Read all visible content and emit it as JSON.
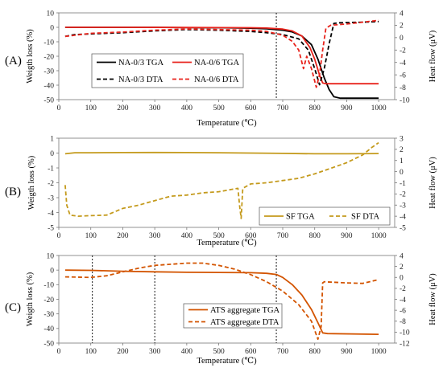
{
  "chart_data": [
    {
      "type": "line",
      "panel_label": "(A)",
      "xlabel": "Temperature (℃)",
      "ylabel": "Weigth loss (%)",
      "y2label": "Heat flow (μV)",
      "xlim": [
        0,
        1050
      ],
      "ylim": [
        -50,
        10
      ],
      "y2lim": [
        -10,
        4
      ],
      "xticks": [
        0,
        100,
        200,
        300,
        400,
        500,
        600,
        700,
        800,
        900,
        1000
      ],
      "yticks": [
        10,
        0,
        -10,
        -20,
        -30,
        -40,
        -50
      ],
      "y2ticks": [
        4,
        2,
        0,
        -2,
        -4,
        -6,
        -8,
        -10
      ],
      "vlines": [
        680
      ],
      "legend_position": "lower-left",
      "series": [
        {
          "name": "NA-0/3 TGA",
          "axis": "left",
          "color": "#000000",
          "dash": "solid",
          "points": [
            [
              20,
              0
            ],
            [
              100,
              0
            ],
            [
              200,
              0
            ],
            [
              300,
              0
            ],
            [
              400,
              -0.2
            ],
            [
              500,
              -0.3
            ],
            [
              600,
              -0.6
            ],
            [
              650,
              -1
            ],
            [
              700,
              -2
            ],
            [
              730,
              -3.2
            ],
            [
              760,
              -6
            ],
            [
              790,
              -12
            ],
            [
              810,
              -22
            ],
            [
              830,
              -35
            ],
            [
              845,
              -43
            ],
            [
              860,
              -48
            ],
            [
              880,
              -49
            ],
            [
              1000,
              -49
            ]
          ]
        },
        {
          "name": "NA-0/6 TGA",
          "axis": "left",
          "color": "#e8231c",
          "dash": "solid",
          "points": [
            [
              20,
              0
            ],
            [
              200,
              0
            ],
            [
              400,
              -0.1
            ],
            [
              600,
              -0.3
            ],
            [
              650,
              -0.5
            ],
            [
              700,
              -1.2
            ],
            [
              730,
              -2.5
            ],
            [
              760,
              -6
            ],
            [
              785,
              -14
            ],
            [
              800,
              -22
            ],
            [
              815,
              -33
            ],
            [
              825,
              -38.5
            ],
            [
              835,
              -39
            ],
            [
              1000,
              -39
            ]
          ]
        },
        {
          "name": "NA-0/3 DTA",
          "axis": "right",
          "color": "#000000",
          "dash": "dashed",
          "points": [
            [
              20,
              0.2
            ],
            [
              50,
              0.5
            ],
            [
              100,
              0.6
            ],
            [
              200,
              0.8
            ],
            [
              300,
              1.1
            ],
            [
              400,
              1.3
            ],
            [
              500,
              1.2
            ],
            [
              600,
              1.0
            ],
            [
              650,
              0.8
            ],
            [
              700,
              0.5
            ],
            [
              750,
              -0.2
            ],
            [
              780,
              -2
            ],
            [
              800,
              -5
            ],
            [
              815,
              -7.6
            ],
            [
              830,
              -5
            ],
            [
              845,
              -1
            ],
            [
              860,
              2.3
            ],
            [
              880,
              2.4
            ],
            [
              950,
              2.5
            ],
            [
              1000,
              2.6
            ]
          ]
        },
        {
          "name": "NA-0/6 DTA",
          "axis": "right",
          "color": "#e8231c",
          "dash": "dashed",
          "points": [
            [
              20,
              0.2
            ],
            [
              100,
              0.7
            ],
            [
              200,
              0.9
            ],
            [
              300,
              1.2
            ],
            [
              400,
              1.4
            ],
            [
              500,
              1.3
            ],
            [
              600,
              1.2
            ],
            [
              650,
              1.0
            ],
            [
              700,
              0.4
            ],
            [
              730,
              -0.6
            ],
            [
              750,
              -2
            ],
            [
              765,
              -5
            ],
            [
              775,
              -3
            ],
            [
              790,
              -5
            ],
            [
              805,
              -8
            ],
            [
              815,
              -6
            ],
            [
              825,
              -2
            ],
            [
              835,
              1.5
            ],
            [
              850,
              2
            ],
            [
              900,
              2.2
            ],
            [
              1000,
              2.8
            ]
          ]
        }
      ]
    },
    {
      "type": "line",
      "panel_label": "(B)",
      "xlabel": "Temperature (℃)",
      "ylabel": "Weigth loss (%)",
      "y2label": "Heat flow (μV)",
      "xlim": [
        0,
        1050
      ],
      "ylim": [
        -5,
        1
      ],
      "y2lim": [
        -5,
        3
      ],
      "xticks": [
        0,
        100,
        200,
        300,
        400,
        500,
        600,
        700,
        800,
        900,
        1000
      ],
      "yticks": [
        1,
        0,
        -1,
        -2,
        -3,
        -4,
        -5
      ],
      "y2ticks": [
        3,
        2,
        1,
        0,
        -1,
        -2,
        -3,
        -4,
        -5
      ],
      "vlines": [],
      "legend_position": "lower-right",
      "series": [
        {
          "name": "SF TGA",
          "axis": "left",
          "color": "#c49a1c",
          "dash": "solid",
          "points": [
            [
              20,
              -0.05
            ],
            [
              50,
              0.02
            ],
            [
              100,
              0.02
            ],
            [
              200,
              0.03
            ],
            [
              300,
              0.04
            ],
            [
              400,
              0.03
            ],
            [
              500,
              0.02
            ],
            [
              600,
              0
            ],
            [
              700,
              -0.02
            ],
            [
              800,
              -0.05
            ],
            [
              900,
              -0.05
            ],
            [
              1000,
              -0.03
            ]
          ]
        },
        {
          "name": "SF DTA",
          "axis": "right",
          "color": "#c49a1c",
          "dash": "dashed",
          "points": [
            [
              20,
              -1.2
            ],
            [
              25,
              -3
            ],
            [
              35,
              -3.9
            ],
            [
              60,
              -4.0
            ],
            [
              100,
              -3.95
            ],
            [
              150,
              -3.9
            ],
            [
              200,
              -3.3
            ],
            [
              250,
              -3.0
            ],
            [
              300,
              -2.6
            ],
            [
              350,
              -2.2
            ],
            [
              400,
              -2.1
            ],
            [
              450,
              -1.9
            ],
            [
              500,
              -1.8
            ],
            [
              540,
              -1.6
            ],
            [
              560,
              -1.5
            ],
            [
              565,
              -3
            ],
            [
              570,
              -4.2
            ],
            [
              575,
              -1.5
            ],
            [
              600,
              -1.1
            ],
            [
              650,
              -1.0
            ],
            [
              700,
              -0.8
            ],
            [
              750,
              -0.6
            ],
            [
              800,
              -0.2
            ],
            [
              850,
              0.3
            ],
            [
              900,
              0.8
            ],
            [
              950,
              1.5
            ],
            [
              980,
              2.2
            ],
            [
              1000,
              2.6
            ]
          ]
        }
      ]
    },
    {
      "type": "line",
      "panel_label": "(C)",
      "xlabel": "Temperature (℃)",
      "ylabel": "Weigth loss (%)",
      "y2label": "Heat flow (μV)",
      "xlim": [
        0,
        1050
      ],
      "ylim": [
        -50,
        10
      ],
      "y2lim": [
        -12,
        4
      ],
      "xticks": [
        0,
        100,
        200,
        300,
        400,
        500,
        600,
        700,
        800,
        900,
        1000
      ],
      "yticks": [
        10,
        0,
        -10,
        -20,
        -30,
        -40,
        -50
      ],
      "y2ticks": [
        4,
        2,
        0,
        -2,
        -4,
        -6,
        -8,
        -10,
        -12
      ],
      "vlines": [
        105,
        300,
        680
      ],
      "legend_position": "lower-left",
      "series": [
        {
          "name": "ATS aggregate TGA",
          "axis": "left",
          "color": "#d35400",
          "dash": "solid",
          "points": [
            [
              20,
              0
            ],
            [
              100,
              -0.2
            ],
            [
              200,
              -0.8
            ],
            [
              300,
              -1.2
            ],
            [
              400,
              -1.5
            ],
            [
              500,
              -1.6
            ],
            [
              600,
              -1.8
            ],
            [
              650,
              -2.2
            ],
            [
              680,
              -3
            ],
            [
              700,
              -5
            ],
            [
              730,
              -10
            ],
            [
              760,
              -17
            ],
            [
              790,
              -27
            ],
            [
              810,
              -36
            ],
            [
              825,
              -43
            ],
            [
              840,
              -43.5
            ],
            [
              1000,
              -44
            ]
          ]
        },
        {
          "name": "ATS aggregate DTA",
          "axis": "right",
          "color": "#d35400",
          "dash": "dashed",
          "points": [
            [
              20,
              0.1
            ],
            [
              100,
              0
            ],
            [
              150,
              0.3
            ],
            [
              200,
              1.0
            ],
            [
              250,
              1.7
            ],
            [
              300,
              2.2
            ],
            [
              350,
              2.4
            ],
            [
              400,
              2.6
            ],
            [
              450,
              2.6
            ],
            [
              500,
              2.2
            ],
            [
              550,
              1.5
            ],
            [
              600,
              0.5
            ],
            [
              650,
              -0.8
            ],
            [
              700,
              -2.5
            ],
            [
              750,
              -5
            ],
            [
              790,
              -8
            ],
            [
              810,
              -11.3
            ],
            [
              820,
              -9
            ],
            [
              825,
              -1
            ],
            [
              830,
              -0.8
            ],
            [
              900,
              -1
            ],
            [
              950,
              -1.1
            ],
            [
              1000,
              -0.4
            ]
          ]
        }
      ]
    }
  ]
}
